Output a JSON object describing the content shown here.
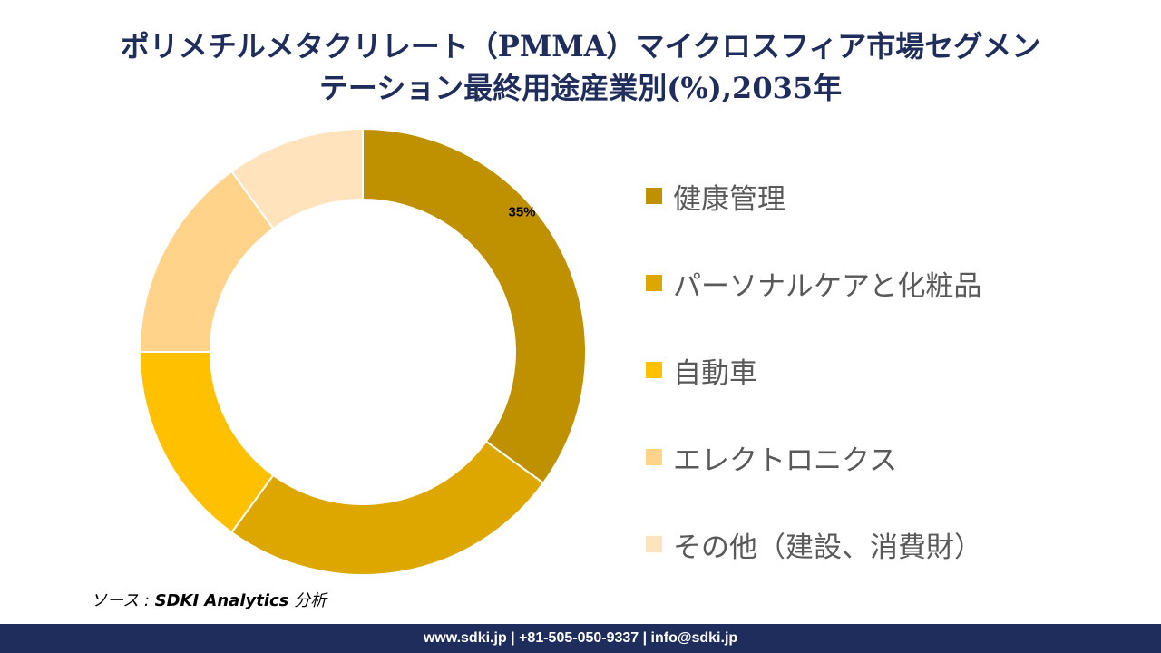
{
  "chart_data": {
    "type": "pie",
    "variant": "donut",
    "title": "ポリメチルメタクリレート（PMMA）マイクロスフィア市場セグメンテーション最終用途産業別(%),2035年",
    "title_lines": [
      "ポリメチルメタクリレート（PMMA）マイクロスフィア市場セグメン",
      "テーション最終用途産業別(%),2035年"
    ],
    "categories": [
      "健康管理",
      "パーソナルケアと化粧品",
      "自動車",
      "エレクトロニクス",
      "その他（建設、消費財）"
    ],
    "values": [
      35,
      25,
      15,
      15,
      10
    ],
    "colors": [
      "#BF9000",
      "#DDA700",
      "#FFC000",
      "#FFD48A",
      "#FEE3BC"
    ],
    "data_labels": [
      "35%",
      "",
      "",
      "",
      ""
    ],
    "legend_position": "right"
  },
  "source": {
    "prefix": "ソース : ",
    "name": "SDKI Analytics",
    "suffix": " 分析"
  },
  "footer": "www.sdki.jp | +81-505-050-9337 | info@sdki.jp"
}
